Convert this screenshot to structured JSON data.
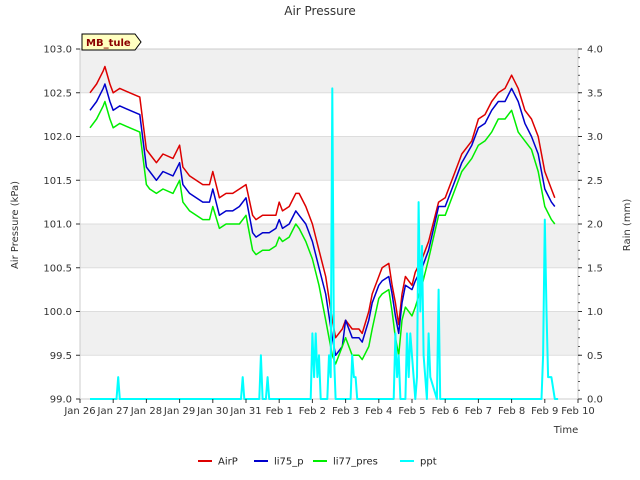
{
  "chart_data": {
    "type": "line",
    "title": "Air Pressure",
    "xlabel": "Time",
    "ylabel": "Air Pressure (kPa)",
    "y2label": "Rain (mm)",
    "site_label": "MB_tule",
    "xlim": [
      0,
      15
    ],
    "ylim": [
      99.0,
      103.0
    ],
    "y2lim": [
      0.0,
      4.0
    ],
    "x_ticks": [
      {
        "v": 0,
        "label": "Jan 26"
      },
      {
        "v": 1,
        "label": "Jan 27"
      },
      {
        "v": 2,
        "label": "Jan 28"
      },
      {
        "v": 3,
        "label": "Jan 29"
      },
      {
        "v": 4,
        "label": "Jan 30"
      },
      {
        "v": 5,
        "label": "Jan 31"
      },
      {
        "v": 6,
        "label": "Feb 1"
      },
      {
        "v": 7,
        "label": "Feb 2"
      },
      {
        "v": 8,
        "label": "Feb 3"
      },
      {
        "v": 9,
        "label": "Feb 4"
      },
      {
        "v": 10,
        "label": "Feb 5"
      },
      {
        "v": 11,
        "label": "Feb 6"
      },
      {
        "v": 12,
        "label": "Feb 7"
      },
      {
        "v": 13,
        "label": "Feb 8"
      },
      {
        "v": 14,
        "label": "Feb 9"
      },
      {
        "v": 15,
        "label": "Feb 10"
      }
    ],
    "y_ticks": [
      {
        "v": 99.0,
        "label": "99.0"
      },
      {
        "v": 99.5,
        "label": "99.5"
      },
      {
        "v": 100.0,
        "label": "100.0"
      },
      {
        "v": 100.5,
        "label": "100.5"
      },
      {
        "v": 101.0,
        "label": "101.0"
      },
      {
        "v": 101.5,
        "label": "101.5"
      },
      {
        "v": 102.0,
        "label": "102.0"
      },
      {
        "v": 102.5,
        "label": "102.5"
      },
      {
        "v": 103.0,
        "label": "103.0"
      }
    ],
    "y2_ticks": [
      {
        "v": 0.0,
        "label": "0.0"
      },
      {
        "v": 0.5,
        "label": "0.5"
      },
      {
        "v": 1.0,
        "label": "1.0"
      },
      {
        "v": 1.5,
        "label": "1.5"
      },
      {
        "v": 2.0,
        "label": "2.0"
      },
      {
        "v": 2.5,
        "label": "2.5"
      },
      {
        "v": 3.0,
        "label": "3.0"
      },
      {
        "v": 3.5,
        "label": "3.5"
      },
      {
        "v": 4.0,
        "label": "4.0"
      }
    ],
    "series": [
      {
        "name": "AirP",
        "color": "#dd0000",
        "axis": "left",
        "x": [
          0.3,
          0.5,
          0.7,
          0.75,
          0.9,
          1.0,
          1.2,
          1.5,
          1.8,
          2.0,
          2.1,
          2.3,
          2.5,
          2.8,
          3.0,
          3.1,
          3.3,
          3.5,
          3.7,
          3.9,
          4.0,
          4.2,
          4.4,
          4.6,
          4.8,
          5.0,
          5.2,
          5.3,
          5.5,
          5.7,
          5.9,
          6.0,
          6.1,
          6.3,
          6.5,
          6.6,
          6.8,
          7.0,
          7.2,
          7.4,
          7.6,
          7.7,
          7.9,
          8.0,
          8.2,
          8.4,
          8.5,
          8.7,
          8.8,
          9.0,
          9.1,
          9.3,
          9.4,
          9.5,
          9.6,
          9.7,
          9.8,
          10.0,
          10.1,
          10.3,
          10.5,
          10.8,
          11.0,
          11.3,
          11.5,
          11.8,
          12.0,
          12.2,
          12.4,
          12.6,
          12.8,
          13.0,
          13.2,
          13.4,
          13.6,
          13.8,
          14.0,
          14.2,
          14.3
        ],
        "y": [
          102.5,
          102.6,
          102.75,
          102.8,
          102.6,
          102.5,
          102.55,
          102.5,
          102.45,
          101.85,
          101.8,
          101.7,
          101.8,
          101.75,
          101.9,
          101.65,
          101.55,
          101.5,
          101.45,
          101.45,
          101.6,
          101.3,
          101.35,
          101.35,
          101.4,
          101.45,
          101.1,
          101.05,
          101.1,
          101.1,
          101.1,
          101.25,
          101.15,
          101.2,
          101.35,
          101.35,
          101.2,
          101.0,
          100.7,
          100.4,
          99.9,
          99.7,
          99.8,
          99.9,
          99.8,
          99.8,
          99.75,
          100.0,
          100.2,
          100.4,
          100.5,
          100.55,
          100.3,
          100.1,
          99.85,
          100.2,
          100.4,
          100.3,
          100.45,
          100.6,
          100.8,
          101.25,
          101.3,
          101.6,
          101.8,
          101.95,
          102.2,
          102.25,
          102.4,
          102.5,
          102.55,
          102.7,
          102.55,
          102.3,
          102.2,
          102.0,
          101.6,
          101.4,
          101.3
        ],
        "values_note": "approx"
      },
      {
        "name": "li75_p",
        "color": "#0000cc",
        "axis": "left",
        "x": [
          0.3,
          0.5,
          0.7,
          0.75,
          0.9,
          1.0,
          1.2,
          1.5,
          1.8,
          2.0,
          2.1,
          2.3,
          2.5,
          2.8,
          3.0,
          3.1,
          3.3,
          3.5,
          3.7,
          3.9,
          4.0,
          4.2,
          4.4,
          4.6,
          4.8,
          5.0,
          5.2,
          5.3,
          5.5,
          5.7,
          5.9,
          6.0,
          6.1,
          6.3,
          6.5,
          6.6,
          6.8,
          7.0,
          7.2,
          7.4,
          7.6,
          7.7,
          7.9,
          8.0,
          8.2,
          8.4,
          8.5,
          8.7,
          8.8,
          9.0,
          9.1,
          9.3,
          9.4,
          9.5,
          9.6,
          9.7,
          9.8,
          10.0,
          10.1,
          10.3,
          10.5,
          10.8,
          11.0,
          11.3,
          11.5,
          11.8,
          12.0,
          12.2,
          12.4,
          12.6,
          12.8,
          13.0,
          13.2,
          13.4,
          13.6,
          13.8,
          14.0,
          14.2,
          14.3
        ],
        "y": [
          102.3,
          102.4,
          102.55,
          102.6,
          102.4,
          102.3,
          102.35,
          102.3,
          102.25,
          101.65,
          101.6,
          101.5,
          101.6,
          101.55,
          101.7,
          101.45,
          101.35,
          101.3,
          101.25,
          101.25,
          101.4,
          101.1,
          101.15,
          101.15,
          101.2,
          101.3,
          100.9,
          100.85,
          100.9,
          100.9,
          100.95,
          101.05,
          100.95,
          101.0,
          101.15,
          101.1,
          101.0,
          100.8,
          100.5,
          100.2,
          99.7,
          99.5,
          99.6,
          99.9,
          99.7,
          99.7,
          99.65,
          99.9,
          100.1,
          100.3,
          100.35,
          100.4,
          100.2,
          99.95,
          99.75,
          100.1,
          100.3,
          100.25,
          100.35,
          100.5,
          100.7,
          101.2,
          101.2,
          101.5,
          101.7,
          101.9,
          102.1,
          102.15,
          102.3,
          102.4,
          102.4,
          102.55,
          102.4,
          102.15,
          102.0,
          101.8,
          101.4,
          101.25,
          101.2
        ],
        "values_note": "approx"
      },
      {
        "name": "li77_pres",
        "color": "#00ee00",
        "axis": "left",
        "x": [
          0.3,
          0.5,
          0.7,
          0.75,
          0.9,
          1.0,
          1.2,
          1.5,
          1.8,
          2.0,
          2.1,
          2.3,
          2.5,
          2.8,
          3.0,
          3.1,
          3.3,
          3.5,
          3.7,
          3.9,
          4.0,
          4.2,
          4.4,
          4.6,
          4.8,
          5.0,
          5.2,
          5.3,
          5.5,
          5.7,
          5.9,
          6.0,
          6.1,
          6.3,
          6.5,
          6.6,
          6.8,
          7.0,
          7.2,
          7.4,
          7.6,
          7.7,
          7.9,
          8.0,
          8.2,
          8.4,
          8.5,
          8.7,
          8.8,
          9.0,
          9.1,
          9.3,
          9.4,
          9.5,
          9.6,
          9.7,
          9.8,
          10.0,
          10.1,
          10.3,
          10.5,
          10.8,
          11.0,
          11.3,
          11.5,
          11.8,
          12.0,
          12.2,
          12.4,
          12.6,
          12.8,
          13.0,
          13.2,
          13.4,
          13.6,
          13.8,
          14.0,
          14.2,
          14.3
        ],
        "y": [
          102.1,
          102.2,
          102.35,
          102.4,
          102.2,
          102.1,
          102.15,
          102.1,
          102.05,
          101.45,
          101.4,
          101.35,
          101.4,
          101.35,
          101.5,
          101.25,
          101.15,
          101.1,
          101.05,
          101.05,
          101.2,
          100.95,
          101.0,
          101.0,
          101.0,
          101.1,
          100.7,
          100.65,
          100.7,
          100.7,
          100.75,
          100.85,
          100.8,
          100.85,
          101.0,
          100.95,
          100.8,
          100.6,
          100.3,
          99.9,
          99.5,
          99.4,
          99.6,
          99.7,
          99.5,
          99.5,
          99.45,
          99.6,
          99.8,
          100.15,
          100.2,
          100.25,
          100.0,
          99.7,
          99.5,
          99.9,
          100.05,
          99.95,
          100.05,
          100.3,
          100.6,
          101.1,
          101.1,
          101.4,
          101.6,
          101.75,
          101.9,
          101.95,
          102.05,
          102.2,
          102.2,
          102.3,
          102.05,
          101.95,
          101.85,
          101.6,
          101.2,
          101.05,
          101.0
        ],
        "values_note": "approx"
      },
      {
        "name": "ppt",
        "color": "#00ffff",
        "axis": "right",
        "x": [
          0.3,
          1.1,
          1.15,
          1.2,
          4.85,
          4.9,
          4.95,
          5.4,
          5.45,
          5.5,
          5.6,
          5.65,
          5.7,
          6.95,
          7.0,
          7.05,
          7.1,
          7.15,
          7.2,
          7.25,
          7.45,
          7.5,
          7.55,
          7.6,
          7.65,
          7.7,
          8.15,
          8.2,
          8.25,
          8.3,
          8.35,
          9.45,
          9.5,
          9.55,
          9.6,
          9.65,
          9.7,
          9.8,
          9.85,
          9.9,
          9.95,
          10.1,
          10.15,
          10.2,
          10.25,
          10.3,
          10.35,
          10.45,
          10.5,
          10.55,
          10.75,
          10.8,
          10.85,
          13.9,
          13.95,
          14.0,
          14.05,
          14.1,
          14.15,
          14.2,
          14.3,
          14.4
        ],
        "y": [
          0.0,
          0.0,
          0.25,
          0.0,
          0.0,
          0.25,
          0.0,
          0.0,
          0.5,
          0.0,
          0.0,
          0.25,
          0.0,
          0.0,
          0.75,
          0.25,
          0.75,
          0.25,
          0.5,
          0.0,
          0.0,
          0.5,
          0.25,
          3.55,
          0.5,
          0.0,
          0.0,
          0.5,
          0.25,
          0.25,
          0.0,
          0.0,
          0.75,
          0.25,
          0.5,
          0.0,
          0.0,
          0.0,
          0.75,
          0.25,
          0.75,
          0.0,
          0.25,
          2.25,
          1.0,
          1.75,
          0.5,
          0.0,
          0.75,
          0.25,
          0.0,
          1.25,
          0.0,
          0.0,
          0.5,
          2.05,
          1.0,
          0.25,
          0.25,
          0.25,
          0.0,
          0.0
        ],
        "values_note": "approx"
      }
    ],
    "legend": {
      "placement": "bottom-center",
      "entries": [
        "AirP",
        "li75_p",
        "li77_pres",
        "ppt"
      ]
    },
    "grid": true
  }
}
